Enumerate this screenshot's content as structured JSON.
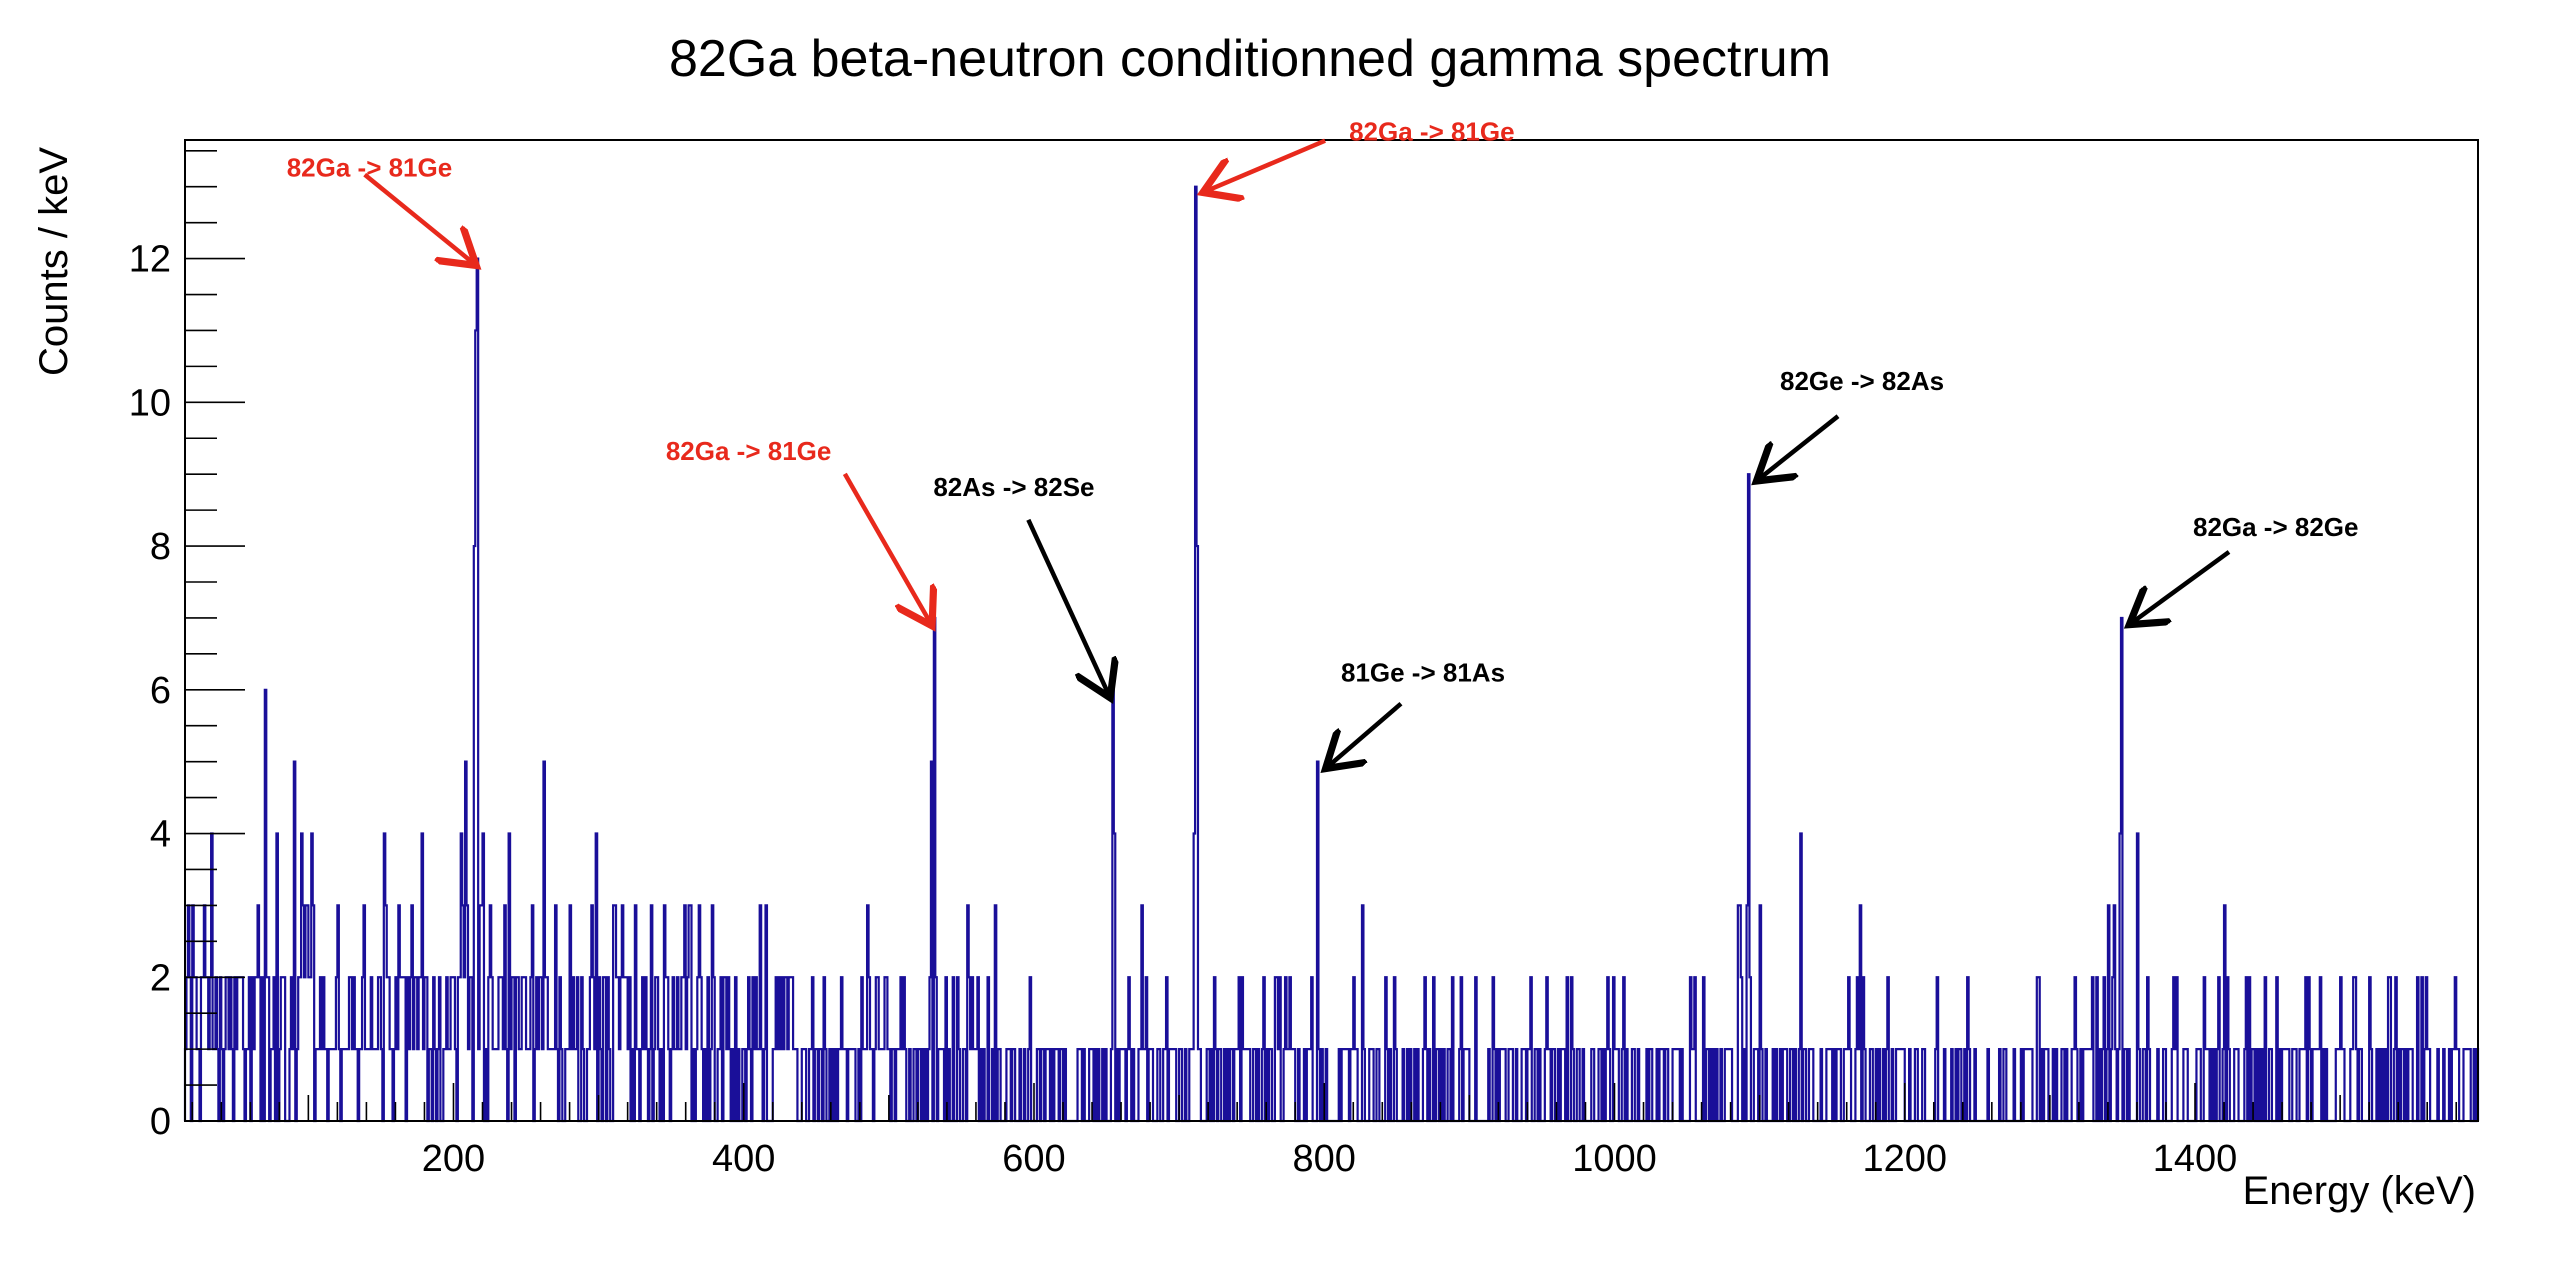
{
  "chart_data": {
    "type": "histogram",
    "title": "82Ga beta-neutron conditionned gamma spectrum",
    "xlabel": "Energy (keV)",
    "ylabel": "Counts / keV",
    "xlim": [
      15,
      1595
    ],
    "ylim": [
      0,
      13.65
    ],
    "bin_width": 1,
    "x_ticks": [
      200,
      400,
      600,
      800,
      1000,
      1200,
      1400
    ],
    "x_tick_labels": [
      "200",
      "400",
      "600",
      "800",
      "1000",
      "1200",
      "1400"
    ],
    "y_ticks": [
      0,
      2,
      4,
      6,
      8,
      10,
      12
    ],
    "y_tick_labels": [
      "0",
      "2",
      "4",
      "6",
      "8",
      "10",
      "12"
    ],
    "line_color": "#1a0f99",
    "grid": false,
    "peaks": [
      {
        "x": 216,
        "y": 12
      },
      {
        "x": 215,
        "y": 11
      },
      {
        "x": 214,
        "y": 8
      },
      {
        "x": 531,
        "y": 7
      },
      {
        "x": 529,
        "y": 5
      },
      {
        "x": 654,
        "y": 6
      },
      {
        "x": 655,
        "y": 4
      },
      {
        "x": 711,
        "y": 13
      },
      {
        "x": 712,
        "y": 8
      },
      {
        "x": 710,
        "y": 4
      },
      {
        "x": 795,
        "y": 5
      },
      {
        "x": 1092,
        "y": 9
      },
      {
        "x": 1128,
        "y": 4
      },
      {
        "x": 1349,
        "y": 7
      },
      {
        "x": 1348,
        "y": 4
      },
      {
        "x": 1360,
        "y": 4
      },
      {
        "x": 33,
        "y": 4
      },
      {
        "x": 70,
        "y": 6
      },
      {
        "x": 78,
        "y": 4
      },
      {
        "x": 90,
        "y": 5
      },
      {
        "x": 95,
        "y": 4
      },
      {
        "x": 102,
        "y": 4
      },
      {
        "x": 152,
        "y": 4
      },
      {
        "x": 178,
        "y": 4
      },
      {
        "x": 205,
        "y": 4
      },
      {
        "x": 208,
        "y": 5
      },
      {
        "x": 220,
        "y": 4
      },
      {
        "x": 238,
        "y": 4
      },
      {
        "x": 262,
        "y": 5
      },
      {
        "x": 298,
        "y": 4
      },
      {
        "x": 1085,
        "y": 3
      },
      {
        "x": 1340,
        "y": 3
      }
    ],
    "annotations": [
      {
        "text": "82Ga -> 81Ge",
        "color": "#e8291c",
        "target": [
          216,
          12
        ]
      },
      {
        "text": "82Ga -> 81Ge",
        "color": "#e8291c",
        "target": [
          531,
          7
        ]
      },
      {
        "text": "82As -> 82Se",
        "color": "#000000",
        "target": [
          654,
          6
        ]
      },
      {
        "text": "82Ga -> 81Ge",
        "color": "#e8291c",
        "target": [
          711,
          13
        ]
      },
      {
        "text": "81Ge -> 81As",
        "color": "#000000",
        "target": [
          795,
          5
        ]
      },
      {
        "text": "82Ge -> 82As",
        "color": "#000000",
        "target": [
          1092,
          9
        ]
      },
      {
        "text": "82Ga -> 82Ge",
        "color": "#000000",
        "target": [
          1349,
          7
        ]
      }
    ]
  }
}
